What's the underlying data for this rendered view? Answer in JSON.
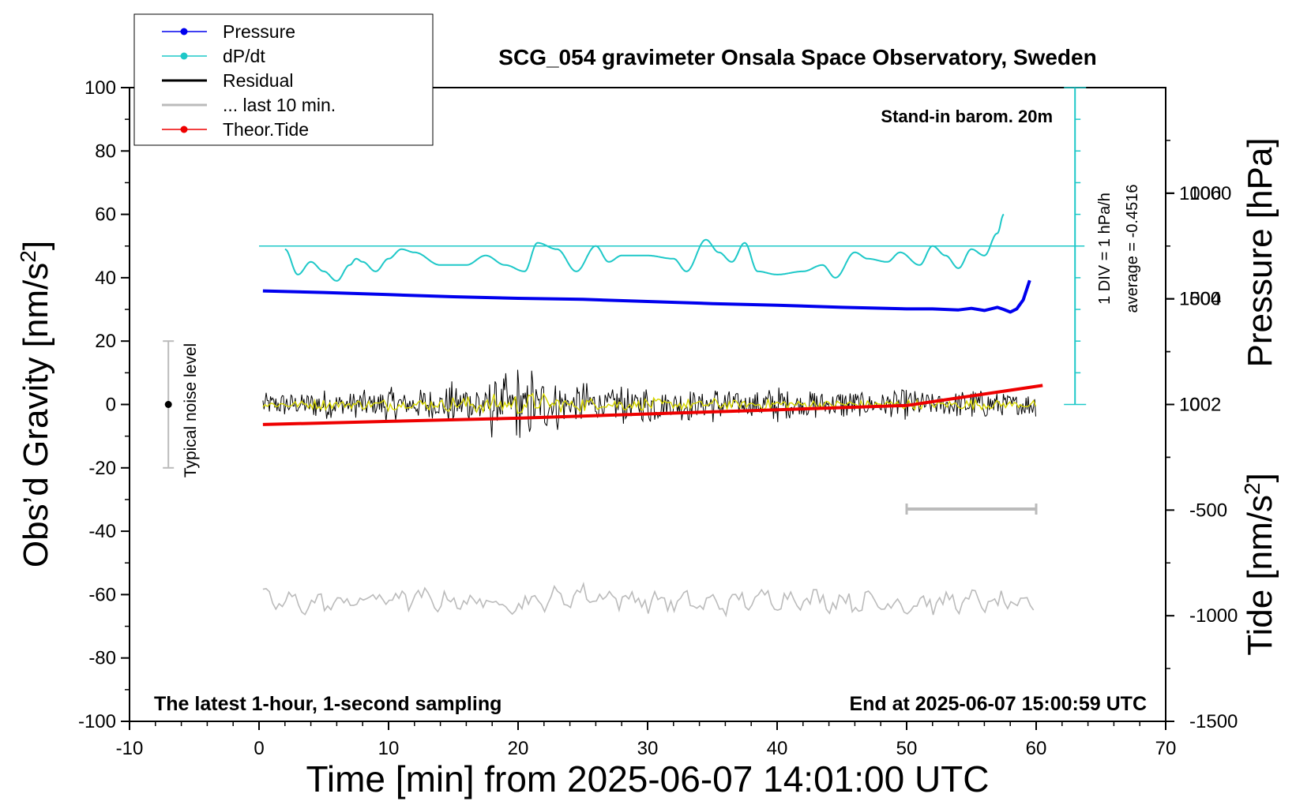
{
  "title": "SCG_054 gravimeter Onsala Space Observatory, Sweden",
  "legend": [
    {
      "label": "Pressure",
      "color": "#0000ee",
      "marker": true
    },
    {
      "label": "dP/dt",
      "color": "#1ec8c8",
      "marker": true
    },
    {
      "label": "Residual",
      "color": "#000000",
      "marker": false
    },
    {
      "label": "... last 10 min.",
      "color": "#bbbbbb",
      "marker": false
    },
    {
      "label": "Theor.Tide",
      "color": "#ee0000",
      "marker": true
    }
  ],
  "annotations": {
    "stand_in": "Stand-in barom. 20m",
    "div_label": "1 DIV = 1 hPa/h",
    "average_label": "average = -0.4516",
    "noise_label": "Typical noise level",
    "bottom_left": "The latest 1-hour, 1-second sampling",
    "bottom_right": "End at 2025-06-07 15:00:59 UTC"
  },
  "colors": {
    "pressure": "#0000ee",
    "dpdt": "#1ec8c8",
    "residual": "#000000",
    "residual_smooth": "#d8d800",
    "last10": "#bbbbbb",
    "tide": "#ee0000",
    "noise_bar": "#bbbbbb"
  },
  "chart_data": {
    "type": "line",
    "title": "SCG_054 gravimeter Onsala Space Observatory, Sweden",
    "xlabel": "Time [min] from 2025-06-07 14:01:00 UTC",
    "xlim": [
      -10,
      70
    ],
    "x_ticks": [
      -10,
      0,
      10,
      20,
      30,
      40,
      50,
      60,
      70
    ],
    "grid": false,
    "legend_position": "top-left",
    "y_left": {
      "label": "Obs’d Gravity [nm/s2]",
      "ylim": [
        -100,
        100
      ],
      "ticks": [
        -100,
        -80,
        -60,
        -40,
        -20,
        0,
        20,
        40,
        60,
        80,
        100
      ]
    },
    "y_right_pressure": {
      "label": "Pressure [hPa]",
      "ylim": [
        996,
        1008
      ],
      "ticks": [
        1002,
        1004,
        1006
      ]
    },
    "y_right_tide": {
      "label": "Tide [nm/s2]",
      "ylim": [
        -1500,
        1500
      ],
      "ticks": [
        -1500,
        -1000,
        -500,
        0,
        500,
        1000
      ]
    },
    "series": [
      {
        "name": "Pressure",
        "axis": "pressure",
        "x": [
          0.3,
          5,
          10,
          15,
          20,
          25,
          30,
          35,
          40,
          45,
          50,
          52,
          54,
          55,
          56,
          57,
          57.5,
          58,
          58.5,
          59,
          59.5
        ],
        "y": [
          1004.15,
          1004.12,
          1004.08,
          1004.04,
          1004.01,
          1003.99,
          1003.95,
          1003.91,
          1003.88,
          1003.84,
          1003.81,
          1003.81,
          1003.79,
          1003.82,
          1003.78,
          1003.84,
          1003.8,
          1003.75,
          1003.81,
          1003.98,
          1004.35
        ]
      },
      {
        "name": "dP/dt",
        "axis": "gravity_div",
        "average": -0.4516,
        "x": [
          2,
          3,
          4,
          5,
          6,
          7,
          7.5,
          8,
          9,
          10,
          11,
          12,
          14,
          16,
          17.5,
          19,
          20.5,
          21.5,
          23,
          24.5,
          26,
          27,
          28,
          30,
          32,
          33,
          34.5,
          35.5,
          36.5,
          37.5,
          38.5,
          40,
          42,
          43.5,
          44.5,
          46,
          47,
          48.5,
          49.5,
          51,
          52,
          53,
          54,
          55,
          56,
          57,
          57.5
        ],
        "y": [
          49,
          41,
          45,
          42,
          39,
          44,
          46,
          45,
          42,
          46,
          49,
          48,
          44,
          44,
          47,
          44,
          42,
          51,
          49,
          42,
          50,
          45,
          47,
          47,
          46,
          42,
          52,
          48,
          45,
          51,
          42,
          41,
          42,
          44,
          40,
          48,
          46,
          45,
          48,
          44,
          50,
          47,
          43,
          49,
          47,
          54,
          60
        ]
      },
      {
        "name": "Residual",
        "axis": "gravity",
        "x": [
          0.3,
          2,
          5,
          8,
          10,
          13,
          15,
          16,
          17,
          18,
          19,
          20,
          21,
          22,
          23,
          25,
          28,
          30,
          33,
          35,
          40,
          43,
          45,
          50,
          55,
          60
        ],
        "y": [
          1,
          -1,
          2,
          -2,
          3,
          -3,
          5,
          -7,
          10,
          -9,
          8,
          -11,
          11,
          -8,
          6,
          -5,
          4,
          -4,
          3,
          -3,
          3,
          -2,
          2,
          -2,
          2,
          -1
        ]
      },
      {
        "name": "... last 10 min.",
        "axis": "gravity",
        "x": [
          0.3,
          5,
          10,
          15,
          20,
          25,
          30,
          35,
          40,
          45,
          50,
          55,
          60
        ],
        "y": [
          -62,
          -63,
          -61,
          -62,
          -63,
          -60,
          -62,
          -63,
          -61,
          -62,
          -63,
          -62,
          -64
        ]
      },
      {
        "name": "Theor.Tide",
        "axis": "tide",
        "x": [
          0.3,
          10,
          20,
          30,
          40,
          50,
          60.5
        ],
        "y": [
          -95,
          -80,
          -65,
          -45,
          -25,
          -5,
          90
        ]
      }
    ],
    "noise_bar": {
      "x": -7,
      "center": 0,
      "range": [
        -20,
        20
      ]
    },
    "dpdt_scale": {
      "x": 63,
      "range": [
        0,
        100
      ],
      "zero_level": 50
    }
  }
}
